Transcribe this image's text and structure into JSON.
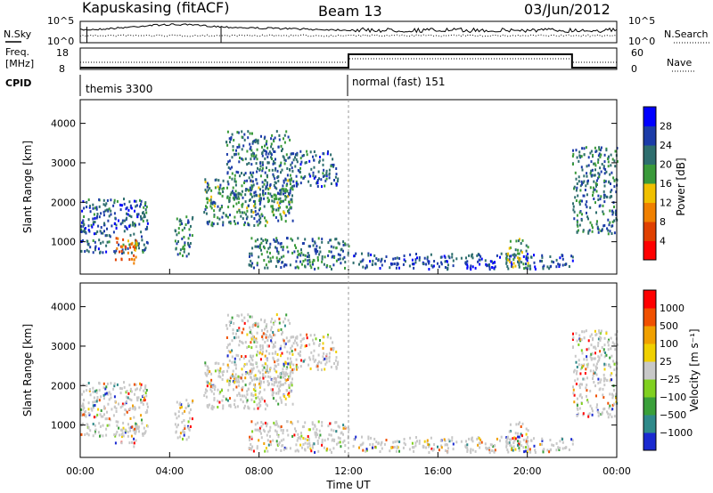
{
  "header": {
    "station": "Kapuskasing (fitACF)",
    "beam": "Beam 13",
    "date": "03/Jun/2012"
  },
  "top_panels": {
    "nsky_label": "N.Sky",
    "nsearch_label": "N.Search",
    "noise_ticks": [
      "10^5",
      "10^0"
    ],
    "freq_label_1": "Freq.",
    "freq_label_2": "[MHz]",
    "freq_ticks": [
      "18",
      "8"
    ],
    "nave_label": "Nave",
    "nave_ticks": [
      "60",
      "0"
    ],
    "cpid_label": "CPID",
    "cpid_segments": [
      "themis 3300",
      "normal (fast) 151"
    ]
  },
  "chart_data": [
    {
      "type": "heatmap",
      "name_panel": "power",
      "xlabel": "",
      "ylabel": "Slant Range [km]",
      "x": {
        "range": [
          0,
          24
        ],
        "unit": "hour UT",
        "ticks": [
          "00:00",
          "04:00",
          "08:00",
          "12:00",
          "16:00",
          "20:00",
          "00:00"
        ]
      },
      "ylim": [
        180,
        4600
      ],
      "yticks": [
        1000,
        2000,
        3000,
        4000
      ],
      "colorbar": {
        "label": "Power [dB]",
        "ticks": [
          "4",
          "8",
          "12",
          "16",
          "20",
          "24",
          "28"
        ],
        "range": [
          0,
          30
        ],
        "colors": [
          "#0000ff",
          "#1c3ca8",
          "#2e6e6e",
          "#3a9a3a",
          "#f0c000",
          "#f08000",
          "#e04000",
          "#ff0000"
        ]
      },
      "echo_regions": [
        {
          "t": [
            0.0,
            3.0
          ],
          "r": [
            700,
            2100
          ],
          "level": 0.25
        },
        {
          "t": [
            1.5,
            2.5
          ],
          "r": [
            450,
            1100
          ],
          "level": 0.7
        },
        {
          "t": [
            4.2,
            5.0
          ],
          "r": [
            600,
            1700
          ],
          "level": 0.3
        },
        {
          "t": [
            5.5,
            9.5
          ],
          "r": [
            1400,
            2600
          ],
          "level": 0.35
        },
        {
          "t": [
            6.5,
            9.5
          ],
          "r": [
            2000,
            3800
          ],
          "level": 0.3
        },
        {
          "t": [
            9.5,
            11.5
          ],
          "r": [
            2400,
            3300
          ],
          "level": 0.25
        },
        {
          "t": [
            7.5,
            12.0
          ],
          "r": [
            300,
            1100
          ],
          "level": 0.3
        },
        {
          "t": [
            12.0,
            22.0
          ],
          "r": [
            300,
            700
          ],
          "level": 0.2
        },
        {
          "t": [
            19.0,
            20.0
          ],
          "r": [
            300,
            1100
          ],
          "level": 0.45
        },
        {
          "t": [
            22.0,
            24.0
          ],
          "r": [
            1200,
            3400
          ],
          "level": 0.3
        }
      ]
    },
    {
      "type": "heatmap",
      "name_panel": "velocity",
      "xlabel": "Time UT",
      "ylabel": "Slant Range [km]",
      "x": {
        "range": [
          0,
          24
        ],
        "unit": "hour UT",
        "ticks": [
          "00:00",
          "04:00",
          "08:00",
          "12:00",
          "16:00",
          "20:00",
          "00:00"
        ]
      },
      "ylim": [
        180,
        4600
      ],
      "yticks": [
        1000,
        2000,
        3000,
        4000
      ],
      "colorbar": {
        "label": "Velocity [m s⁻¹]",
        "ticks": [
          "1000",
          "500",
          "100",
          "25",
          "−25",
          "−100",
          "−500",
          "−1000"
        ],
        "colors": [
          "#1a2ad0",
          "#2f8a8a",
          "#3aa03a",
          "#80d020",
          "#c8c8c8",
          "#f0d000",
          "#f0a000",
          "#f05000",
          "#ff0000"
        ]
      }
    }
  ]
}
